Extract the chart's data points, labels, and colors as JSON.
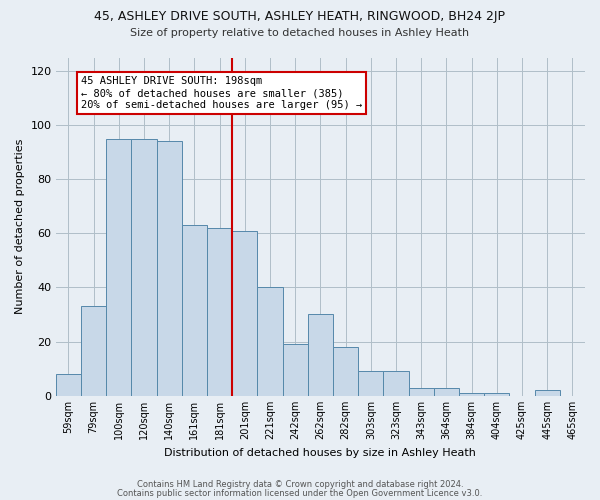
{
  "title": "45, ASHLEY DRIVE SOUTH, ASHLEY HEATH, RINGWOOD, BH24 2JP",
  "subtitle": "Size of property relative to detached houses in Ashley Heath",
  "xlabel": "Distribution of detached houses by size in Ashley Heath",
  "ylabel": "Number of detached properties",
  "footer_line1": "Contains HM Land Registry data © Crown copyright and database right 2024.",
  "footer_line2": "Contains public sector information licensed under the Open Government Licence v3.0.",
  "annotation_line1": "45 ASHLEY DRIVE SOUTH: 198sqm",
  "annotation_line2": "← 80% of detached houses are smaller (385)",
  "annotation_line3": "20% of semi-detached houses are larger (95) →",
  "bar_labels": [
    "59sqm",
    "79sqm",
    "100sqm",
    "120sqm",
    "140sqm",
    "161sqm",
    "181sqm",
    "201sqm",
    "221sqm",
    "242sqm",
    "262sqm",
    "282sqm",
    "303sqm",
    "323sqm",
    "343sqm",
    "364sqm",
    "384sqm",
    "404sqm",
    "425sqm",
    "445sqm",
    "465sqm"
  ],
  "bar_values": [
    8,
    33,
    95,
    95,
    94,
    63,
    62,
    61,
    40,
    19,
    30,
    18,
    9,
    9,
    3,
    3,
    1,
    1,
    0,
    2,
    0
  ],
  "bar_color": "#c8d8e8",
  "bar_edge_color": "#5588aa",
  "reference_bar_index": 7,
  "reference_line_color": "#cc0000",
  "ylim": [
    0,
    125
  ],
  "yticks": [
    0,
    20,
    40,
    60,
    80,
    100,
    120
  ],
  "background_color": "#e8eef4",
  "plot_bg_color": "#e8eef4",
  "grid_color": "#b0bec8"
}
